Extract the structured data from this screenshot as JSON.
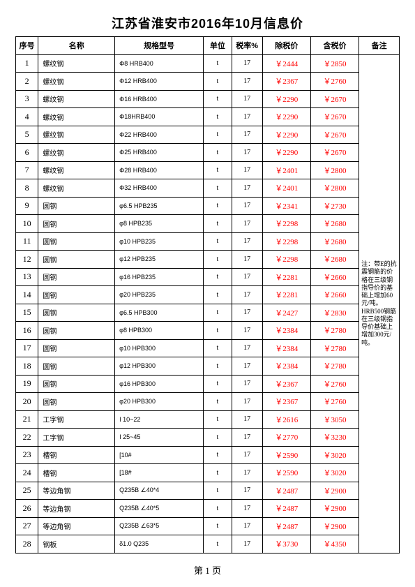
{
  "title": "江苏省淮安市2016年10月信息价",
  "columns": [
    "序号",
    "名称",
    "规格型号",
    "单位",
    "税率%",
    "除税价",
    "含税价",
    "备注"
  ],
  "note_text": "注：带E的抗震钢筋的价格在三级钢指导价的基础上增加60元/吨。HRB500钢筋在三级钢指导价基础上增加300元/吨。",
  "footer": "第 1 页",
  "price_color": "#ff0000",
  "rows": [
    {
      "seq": "1",
      "name": "螺纹钢",
      "spec": "Φ8 HRB400",
      "unit": "t",
      "tax": "17",
      "pex": "￥2444",
      "pin": "￥2850"
    },
    {
      "seq": "2",
      "name": "螺纹钢",
      "spec": "Φ12 HRB400",
      "unit": "t",
      "tax": "17",
      "pex": "￥2367",
      "pin": "￥2760"
    },
    {
      "seq": "3",
      "name": "螺纹钢",
      "spec": "Φ16 HRB400",
      "unit": "t",
      "tax": "17",
      "pex": "￥2290",
      "pin": "￥2670"
    },
    {
      "seq": "4",
      "name": "螺纹钢",
      "spec": "Φ18HRB400",
      "unit": "t",
      "tax": "17",
      "pex": "￥2290",
      "pin": "￥2670"
    },
    {
      "seq": "5",
      "name": "螺纹钢",
      "spec": "Φ22 HRB400",
      "unit": "t",
      "tax": "17",
      "pex": "￥2290",
      "pin": "￥2670"
    },
    {
      "seq": "6",
      "name": "螺纹钢",
      "spec": "Φ25 HRB400",
      "unit": "t",
      "tax": "17",
      "pex": "￥2290",
      "pin": "￥2670"
    },
    {
      "seq": "7",
      "name": "螺纹钢",
      "spec": "Φ28 HRB400",
      "unit": "t",
      "tax": "17",
      "pex": "￥2401",
      "pin": "￥2800"
    },
    {
      "seq": "8",
      "name": "螺纹钢",
      "spec": "Φ32 HRB400",
      "unit": "t",
      "tax": "17",
      "pex": "￥2401",
      "pin": "￥2800"
    },
    {
      "seq": "9",
      "name": "圆钢",
      "spec": "φ6.5 HPB235",
      "unit": "t",
      "tax": "17",
      "pex": "￥2341",
      "pin": "￥2730"
    },
    {
      "seq": "10",
      "name": "圆钢",
      "spec": "φ8 HPB235",
      "unit": "t",
      "tax": "17",
      "pex": "￥2298",
      "pin": "￥2680"
    },
    {
      "seq": "11",
      "name": "圆钢",
      "spec": "φ10 HPB235",
      "unit": "t",
      "tax": "17",
      "pex": "￥2298",
      "pin": "￥2680"
    },
    {
      "seq": "12",
      "name": "圆钢",
      "spec": "φ12 HPB235",
      "unit": "t",
      "tax": "17",
      "pex": "￥2298",
      "pin": "￥2680"
    },
    {
      "seq": "13",
      "name": "圆钢",
      "spec": "φ16 HPB235",
      "unit": "t",
      "tax": "17",
      "pex": "￥2281",
      "pin": "￥2660"
    },
    {
      "seq": "14",
      "name": "圆钢",
      "spec": "φ20 HPB235",
      "unit": "t",
      "tax": "17",
      "pex": "￥2281",
      "pin": "￥2660"
    },
    {
      "seq": "15",
      "name": "圆钢",
      "spec": "φ6.5 HPB300",
      "unit": "t",
      "tax": "17",
      "pex": "￥2427",
      "pin": "￥2830"
    },
    {
      "seq": "16",
      "name": "圆钢",
      "spec": "φ8 HPB300",
      "unit": "t",
      "tax": "17",
      "pex": "￥2384",
      "pin": "￥2780"
    },
    {
      "seq": "17",
      "name": "圆钢",
      "spec": "φ10 HPB300",
      "unit": "t",
      "tax": "17",
      "pex": "￥2384",
      "pin": "￥2780"
    },
    {
      "seq": "18",
      "name": "圆钢",
      "spec": "φ12 HPB300",
      "unit": "t",
      "tax": "17",
      "pex": "￥2384",
      "pin": "￥2780"
    },
    {
      "seq": "19",
      "name": "圆钢",
      "spec": "φ16 HPB300",
      "unit": "t",
      "tax": "17",
      "pex": "￥2367",
      "pin": "￥2760"
    },
    {
      "seq": "20",
      "name": "圆钢",
      "spec": "φ20 HPB300",
      "unit": "t",
      "tax": "17",
      "pex": "￥2367",
      "pin": "￥2760"
    },
    {
      "seq": "21",
      "name": "工字钢",
      "spec": "I 10~22",
      "unit": "t",
      "tax": "17",
      "pex": "￥2616",
      "pin": "￥3050"
    },
    {
      "seq": "22",
      "name": "工字钢",
      "spec": "I 25~45",
      "unit": "t",
      "tax": "17",
      "pex": "￥2770",
      "pin": "￥3230"
    },
    {
      "seq": "23",
      "name": "槽钢",
      "spec": "[10#",
      "unit": "t",
      "tax": "17",
      "pex": "￥2590",
      "pin": "￥3020"
    },
    {
      "seq": "24",
      "name": "槽钢",
      "spec": "[18#",
      "unit": "t",
      "tax": "17",
      "pex": "￥2590",
      "pin": "￥3020"
    },
    {
      "seq": "25",
      "name": "等边角钢",
      "spec": "Q235B ∠40*4",
      "unit": "t",
      "tax": "17",
      "pex": "￥2487",
      "pin": "￥2900"
    },
    {
      "seq": "26",
      "name": "等边角钢",
      "spec": "Q235B ∠40*5",
      "unit": "t",
      "tax": "17",
      "pex": "￥2487",
      "pin": "￥2900"
    },
    {
      "seq": "27",
      "name": "等边角钢",
      "spec": "Q235B ∠63*5",
      "unit": "t",
      "tax": "17",
      "pex": "￥2487",
      "pin": "￥2900"
    },
    {
      "seq": "28",
      "name": "钢板",
      "spec": "δ1.0 Q235",
      "unit": "t",
      "tax": "17",
      "pex": "￥3730",
      "pin": "￥4350"
    }
  ]
}
